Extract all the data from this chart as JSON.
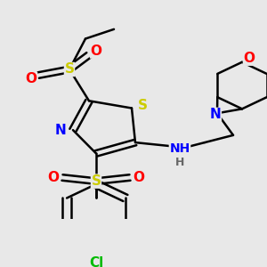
{
  "bg_color": "#e8e8e8",
  "atom_colors": {
    "S": "#cccc00",
    "N": "#0000ff",
    "O": "#ff0000",
    "Cl": "#00bb00",
    "C": "#000000",
    "H": "#666666"
  },
  "lw": 1.8
}
